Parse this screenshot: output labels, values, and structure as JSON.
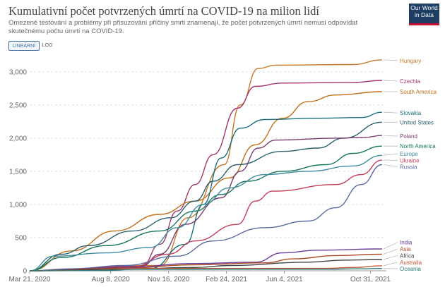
{
  "header": {
    "title": "Kumulativní počet potvrzených úmrtí na COVID-19 na milion lidí",
    "subtitle": "Omezené testování a problémy při přisuzování příčiny smrti znamenají, že počet potvrzených úmrtí nemusí odpovídat skutečnému počtu úmrtí na COVID-19.",
    "logo_line1": "Our World",
    "logo_line2": "in Data"
  },
  "toggles": {
    "linear_label": "LINEÁRNÍ",
    "log_label": "LOG",
    "active": "linear"
  },
  "chart_data": {
    "type": "line",
    "title": "Kumulativní počet potvrzených úmrtí na COVID-19 na milion lidí",
    "xlabel": "",
    "ylabel": "",
    "ylim": [
      0,
      3200
    ],
    "xlim": [
      "2020-03-21",
      "2021-11-25"
    ],
    "grid": "horizontal dashed",
    "legend": "right (end-of-line labels)",
    "y_ticks": [
      0,
      500,
      1000,
      1500,
      2000,
      2500,
      3000
    ],
    "y_tick_labels": [
      "0",
      "500",
      "1,000",
      "1,500",
      "2,000",
      "2,500",
      "3,000"
    ],
    "x_ticks": [
      "2020-03-21",
      "2020-08-08",
      "2020-11-16",
      "2021-02-24",
      "2021-06-04",
      "2021-10-31"
    ],
    "x_tick_labels": [
      "Mar 21, 2020",
      "Aug 8, 2020",
      "Nov 16, 2020",
      "Feb 24, 2021",
      "Jun 4, 2021",
      "Oct 31, 2021"
    ],
    "series": [
      {
        "name": "Hungary",
        "color": "#c4782a",
        "end_value": 3170,
        "points": [
          [
            "2020-03-21",
            0
          ],
          [
            "2020-11-01",
            80
          ],
          [
            "2020-12-20",
            800
          ],
          [
            "2021-02-20",
            1600
          ],
          [
            "2021-03-20",
            2500
          ],
          [
            "2021-04-20",
            3050
          ],
          [
            "2021-05-20",
            3100
          ],
          [
            "2021-10-01",
            3110
          ],
          [
            "2021-11-20",
            3180
          ]
        ]
      },
      {
        "name": "Czechia",
        "color": "#a2356e",
        "end_value": 2860,
        "points": [
          [
            "2020-03-21",
            0
          ],
          [
            "2020-10-01",
            70
          ],
          [
            "2020-11-01",
            400
          ],
          [
            "2020-12-01",
            900
          ],
          [
            "2021-01-01",
            1300
          ],
          [
            "2021-02-01",
            1750
          ],
          [
            "2021-03-15",
            2450
          ],
          [
            "2021-04-15",
            2780
          ],
          [
            "2021-06-01",
            2830
          ],
          [
            "2021-10-01",
            2840
          ],
          [
            "2021-11-20",
            2870
          ]
        ]
      },
      {
        "name": "South America",
        "color": "#c0701a",
        "end_value": 2700,
        "points": [
          [
            "2020-03-21",
            0
          ],
          [
            "2020-06-01",
            300
          ],
          [
            "2020-08-15",
            600
          ],
          [
            "2020-11-01",
            850
          ],
          [
            "2021-01-01",
            1050
          ],
          [
            "2021-03-01",
            1400
          ],
          [
            "2021-04-15",
            1900
          ],
          [
            "2021-06-01",
            2300
          ],
          [
            "2021-07-15",
            2550
          ],
          [
            "2021-09-01",
            2650
          ],
          [
            "2021-11-20",
            2700
          ]
        ]
      },
      {
        "name": "Slovakia",
        "color": "#19717d",
        "end_value": 2380,
        "points": [
          [
            "2020-03-21",
            0
          ],
          [
            "2020-10-15",
            30
          ],
          [
            "2020-12-15",
            400
          ],
          [
            "2021-01-15",
            1000
          ],
          [
            "2021-02-15",
            1700
          ],
          [
            "2021-03-20",
            2150
          ],
          [
            "2021-05-01",
            2280
          ],
          [
            "2021-08-01",
            2300
          ],
          [
            "2021-10-15",
            2310
          ],
          [
            "2021-11-20",
            2390
          ]
        ]
      },
      {
        "name": "United States",
        "color": "#2b5f6e",
        "end_value": 2240,
        "points": [
          [
            "2020-03-21",
            0
          ],
          [
            "2020-05-15",
            250
          ],
          [
            "2020-07-01",
            380
          ],
          [
            "2020-09-15",
            600
          ],
          [
            "2020-11-20",
            800
          ],
          [
            "2021-01-01",
            1050
          ],
          [
            "2021-02-01",
            1350
          ],
          [
            "2021-03-15",
            1600
          ],
          [
            "2021-06-01",
            1800
          ],
          [
            "2021-08-01",
            1850
          ],
          [
            "2021-09-15",
            2000
          ],
          [
            "2021-11-20",
            2240
          ]
        ]
      },
      {
        "name": "Poland",
        "color": "#7a3d6f",
        "end_value": 2030,
        "points": [
          [
            "2020-03-21",
            0
          ],
          [
            "2020-10-01",
            70
          ],
          [
            "2020-11-01",
            250
          ],
          [
            "2020-12-15",
            700
          ],
          [
            "2021-02-15",
            1100
          ],
          [
            "2021-03-20",
            1500
          ],
          [
            "2021-04-20",
            1850
          ],
          [
            "2021-05-20",
            1970
          ],
          [
            "2021-09-01",
            2000
          ],
          [
            "2021-10-20",
            2010
          ],
          [
            "2021-11-20",
            2040
          ]
        ]
      },
      {
        "name": "North America",
        "color": "#18765c",
        "end_value": 1880,
        "points": [
          [
            "2020-03-21",
            0
          ],
          [
            "2020-05-15",
            200
          ],
          [
            "2020-08-01",
            380
          ],
          [
            "2020-11-01",
            600
          ],
          [
            "2021-01-01",
            900
          ],
          [
            "2021-02-15",
            1150
          ],
          [
            "2021-04-01",
            1350
          ],
          [
            "2021-06-01",
            1500
          ],
          [
            "2021-08-15",
            1600
          ],
          [
            "2021-10-01",
            1770
          ],
          [
            "2021-11-20",
            1880
          ]
        ]
      },
      {
        "name": "Europe",
        "color": "#3f8c9e",
        "end_value": 1740,
        "points": [
          [
            "2020-03-21",
            0
          ],
          [
            "2020-05-01",
            220
          ],
          [
            "2020-08-01",
            270
          ],
          [
            "2020-10-15",
            350
          ],
          [
            "2020-12-01",
            650
          ],
          [
            "2021-01-15",
            1000
          ],
          [
            "2021-03-01",
            1250
          ],
          [
            "2021-05-01",
            1450
          ],
          [
            "2021-07-15",
            1500
          ],
          [
            "2021-10-01",
            1580
          ],
          [
            "2021-11-20",
            1740
          ]
        ]
      },
      {
        "name": "Ukraine",
        "color": "#c43d5a",
        "end_value": 1660,
        "points": [
          [
            "2020-03-21",
            0
          ],
          [
            "2020-09-15",
            60
          ],
          [
            "2020-11-15",
            250
          ],
          [
            "2021-01-01",
            450
          ],
          [
            "2021-03-15",
            700
          ],
          [
            "2021-04-15",
            1050
          ],
          [
            "2021-05-15",
            1200
          ],
          [
            "2021-09-01",
            1300
          ],
          [
            "2021-10-15",
            1450
          ],
          [
            "2021-11-20",
            1670
          ]
        ]
      },
      {
        "name": "Russia",
        "color": "#5a6aa0",
        "end_value": 1600,
        "points": [
          [
            "2020-03-21",
            0
          ],
          [
            "2020-06-01",
            30
          ],
          [
            "2020-09-01",
            80
          ],
          [
            "2020-12-01",
            220
          ],
          [
            "2021-02-01",
            450
          ],
          [
            "2021-05-01",
            650
          ],
          [
            "2021-07-15",
            750
          ],
          [
            "2021-09-01",
            950
          ],
          [
            "2021-10-15",
            1300
          ],
          [
            "2021-11-20",
            1600
          ]
        ]
      },
      {
        "name": "India",
        "color": "#6a3d9a",
        "end_value": 330,
        "points": [
          [
            "2020-03-21",
            0
          ],
          [
            "2020-09-01",
            50
          ],
          [
            "2021-01-01",
            110
          ],
          [
            "2021-04-15",
            130
          ],
          [
            "2021-06-01",
            270
          ],
          [
            "2021-08-01",
            310
          ],
          [
            "2021-11-20",
            330
          ]
        ]
      },
      {
        "name": "Asia",
        "color": "#b04a28",
        "end_value": 245,
        "points": [
          [
            "2020-03-21",
            0
          ],
          [
            "2020-09-01",
            40
          ],
          [
            "2021-01-01",
            90
          ],
          [
            "2021-05-01",
            120
          ],
          [
            "2021-06-20",
            180
          ],
          [
            "2021-09-01",
            230
          ],
          [
            "2021-11-20",
            250
          ]
        ]
      },
      {
        "name": "Africa",
        "color": "#444444",
        "end_value": 165,
        "points": [
          [
            "2020-03-21",
            0
          ],
          [
            "2020-09-01",
            25
          ],
          [
            "2021-01-01",
            50
          ],
          [
            "2021-03-01",
            80
          ],
          [
            "2021-07-15",
            130
          ],
          [
            "2021-09-15",
            160
          ],
          [
            "2021-11-20",
            170
          ]
        ]
      },
      {
        "name": "Australia",
        "color": "#c25a3a",
        "end_value": 75,
        "points": [
          [
            "2020-03-21",
            0
          ],
          [
            "2020-08-01",
            5
          ],
          [
            "2020-09-15",
            35
          ],
          [
            "2021-08-15",
            36
          ],
          [
            "2021-10-01",
            50
          ],
          [
            "2021-11-20",
            75
          ]
        ]
      },
      {
        "name": "Oceania",
        "color": "#2a7a78",
        "end_value": 35,
        "points": [
          [
            "2020-03-21",
            0
          ],
          [
            "2020-08-01",
            3
          ],
          [
            "2020-09-15",
            22
          ],
          [
            "2021-08-15",
            23
          ],
          [
            "2021-10-15",
            30
          ],
          [
            "2021-11-20",
            35
          ]
        ]
      }
    ],
    "end_labels": [
      {
        "name": "Hungary",
        "color": "#c4782a",
        "label_y": 3170
      },
      {
        "name": "Czechia",
        "color": "#a2356e",
        "label_y": 2860
      },
      {
        "name": "South America",
        "color": "#c0701a",
        "label_y": 2700
      },
      {
        "name": "Slovakia",
        "color": "#19717d",
        "label_y": 2380
      },
      {
        "name": "United States",
        "color": "#2b5f6e",
        "label_y": 2240
      },
      {
        "name": "Poland",
        "color": "#7a3d6f",
        "label_y": 2030
      },
      {
        "name": "North America",
        "color": "#18765c",
        "label_y": 1880
      },
      {
        "name": "Europe",
        "color": "#3f8c9e",
        "label_y": 1765
      },
      {
        "name": "Ukraine",
        "color": "#c43d5a",
        "label_y": 1665
      },
      {
        "name": "Russia",
        "color": "#5a6aa0",
        "label_y": 1570
      },
      {
        "name": "India",
        "color": "#6a3d9a",
        "label_y": 430
      },
      {
        "name": "Asia",
        "color": "#b04a28",
        "label_y": 330
      },
      {
        "name": "Africa",
        "color": "#444444",
        "label_y": 230
      },
      {
        "name": "Australia",
        "color": "#c25a3a",
        "label_y": 130
      },
      {
        "name": "Oceania",
        "color": "#2a7a78",
        "label_y": 30
      }
    ]
  }
}
